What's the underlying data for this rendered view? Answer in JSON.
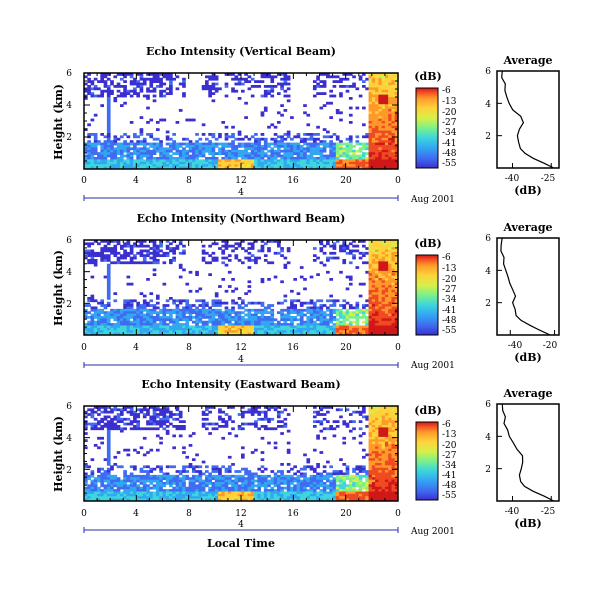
{
  "colors": {
    "scale": [
      "#3b2fd0",
      "#3f6cf0",
      "#33a6f2",
      "#3dd6dc",
      "#7cf08a",
      "#d6f04a",
      "#ffd23a",
      "#ff9a2a",
      "#f04a22",
      "#d01818"
    ],
    "frame": "#000000",
    "date_marker": "#2b2ba8"
  },
  "colorbar": {
    "unit": "(dB)",
    "tick_labels": [
      "-6",
      "-13",
      "-20",
      "-27",
      "-34",
      "-41",
      "-48",
      "-55"
    ]
  },
  "date_label": "Aug 2001",
  "xlabel": "Local Time",
  "date_marker_label": "4",
  "chart_data": [
    {
      "type": "heatmap",
      "title": "Echo Intensity (Vertical Beam)",
      "ylabel": "Height (km)",
      "x_ticks": [
        "0",
        "4",
        "8",
        "12",
        "16",
        "20",
        "0"
      ],
      "y_ticks": [
        "6",
        "4",
        "2"
      ],
      "xlim": [
        0,
        24
      ],
      "ylim": [
        0,
        6
      ],
      "zlim": [
        -55,
        -6
      ],
      "zunit": "dB"
    },
    {
      "type": "line",
      "title": "Average",
      "xlabel": "(dB)",
      "x_ticks": [
        "-40",
        "-25"
      ],
      "y_ticks": [
        "6",
        "4",
        "2"
      ],
      "xlim": [
        -46,
        -22
      ],
      "ylim": [
        0,
        6
      ],
      "profile": [
        [
          0.0,
          -24
        ],
        [
          0.3,
          -28
        ],
        [
          0.6,
          -32
        ],
        [
          0.9,
          -35
        ],
        [
          1.2,
          -37
        ],
        [
          1.6,
          -38
        ],
        [
          2.0,
          -38
        ],
        [
          2.4,
          -37
        ],
        [
          2.8,
          -36
        ],
        [
          3.2,
          -37
        ],
        [
          3.6,
          -40
        ],
        [
          4.0,
          -41
        ],
        [
          4.4,
          -42
        ],
        [
          4.8,
          -43
        ],
        [
          5.2,
          -43
        ],
        [
          5.6,
          -44
        ],
        [
          6.0,
          -44
        ]
      ]
    },
    {
      "type": "heatmap",
      "title": "Echo Intensity (Northward Beam)",
      "ylabel": "Height (km)",
      "x_ticks": [
        "0",
        "4",
        "8",
        "12",
        "16",
        "20",
        "0"
      ],
      "y_ticks": [
        "6",
        "4",
        "2"
      ],
      "xlim": [
        0,
        24
      ],
      "ylim": [
        0,
        6
      ],
      "zlim": [
        -55,
        -6
      ],
      "zunit": "dB"
    },
    {
      "type": "line",
      "title": "Average",
      "xlabel": "(dB)",
      "x_ticks": [
        "-40",
        "-20"
      ],
      "y_ticks": [
        "6",
        "4",
        "2"
      ],
      "xlim": [
        -46,
        -18
      ],
      "ylim": [
        0,
        6
      ],
      "profile": [
        [
          0.0,
          -22
        ],
        [
          0.3,
          -27
        ],
        [
          0.6,
          -31
        ],
        [
          0.9,
          -35
        ],
        [
          1.2,
          -37
        ],
        [
          1.6,
          -38
        ],
        [
          2.0,
          -39
        ],
        [
          2.4,
          -38
        ],
        [
          2.8,
          -39
        ],
        [
          3.2,
          -40
        ],
        [
          3.6,
          -41
        ],
        [
          4.0,
          -42
        ],
        [
          4.4,
          -43
        ],
        [
          4.8,
          -43
        ],
        [
          5.2,
          -44
        ],
        [
          5.6,
          -44
        ],
        [
          6.0,
          -44
        ]
      ]
    },
    {
      "type": "heatmap",
      "title": "Echo Intensity (Eastward Beam)",
      "ylabel": "Height (km)",
      "x_ticks": [
        "0",
        "4",
        "8",
        "12",
        "16",
        "20",
        "0"
      ],
      "y_ticks": [
        "6",
        "4",
        "2"
      ],
      "xlim": [
        0,
        24
      ],
      "ylim": [
        0,
        6
      ],
      "zlim": [
        -55,
        -6
      ],
      "zunit": "dB"
    },
    {
      "type": "line",
      "title": "Average",
      "xlabel": "(dB)",
      "x_ticks": [
        "-40",
        "-25"
      ],
      "y_ticks": [
        "6",
        "4",
        "2"
      ],
      "xlim": [
        -46,
        -22
      ],
      "ylim": [
        0,
        6
      ],
      "profile": [
        [
          0.0,
          -24
        ],
        [
          0.3,
          -28
        ],
        [
          0.6,
          -32
        ],
        [
          0.9,
          -35
        ],
        [
          1.2,
          -37
        ],
        [
          1.6,
          -37
        ],
        [
          2.0,
          -37
        ],
        [
          2.4,
          -36
        ],
        [
          2.8,
          -36
        ],
        [
          3.2,
          -38
        ],
        [
          3.6,
          -40
        ],
        [
          4.0,
          -41
        ],
        [
          4.4,
          -42
        ],
        [
          4.8,
          -43
        ],
        [
          5.2,
          -43
        ],
        [
          5.6,
          -44
        ],
        [
          6.0,
          -44
        ]
      ]
    }
  ]
}
